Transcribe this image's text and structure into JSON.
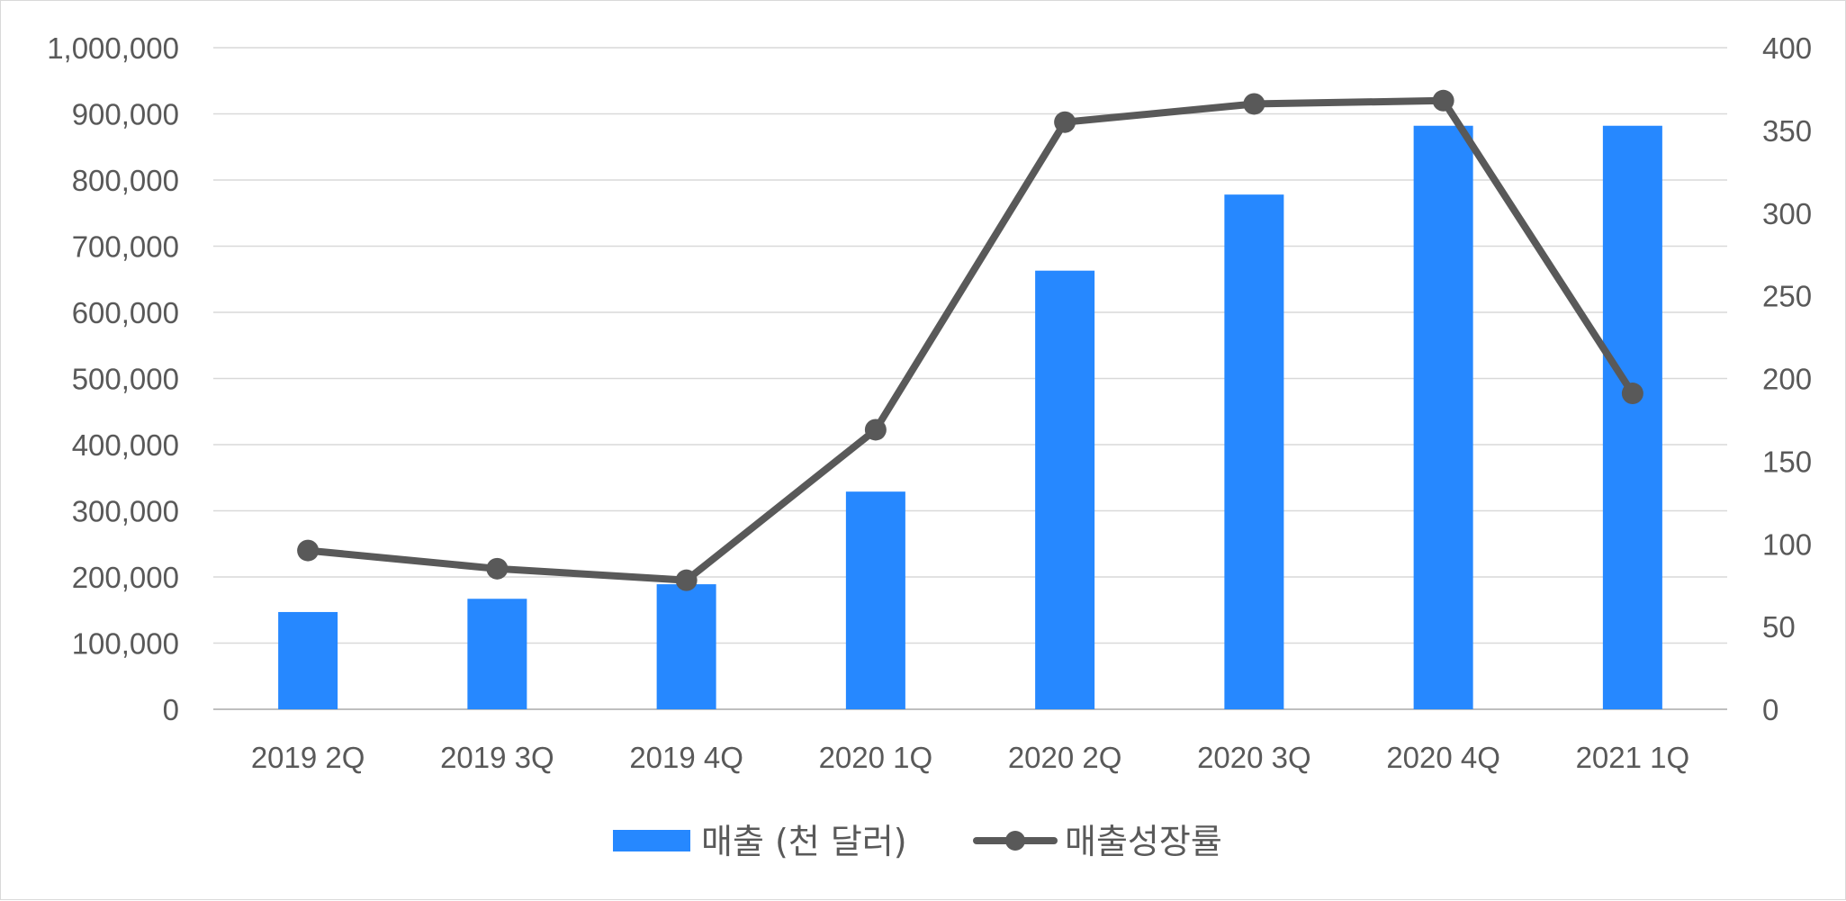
{
  "chart_data": {
    "type": "bar",
    "categories": [
      "2019 2Q",
      "2019 3Q",
      "2019 4Q",
      "2020 1Q",
      "2020 2Q",
      "2020 3Q",
      "2020 4Q",
      "2021 1Q"
    ],
    "series": [
      {
        "name": "매출 (천 달러)",
        "type": "bar",
        "axis": "left",
        "color": "#2688ff",
        "values": [
          147000,
          167000,
          189000,
          329000,
          663000,
          778000,
          882000,
          882000
        ]
      },
      {
        "name": "매출성장률",
        "type": "line",
        "axis": "right",
        "color": "#595959",
        "marker": "circle",
        "values": [
          96,
          85,
          78,
          169,
          355,
          366,
          368,
          191
        ]
      }
    ],
    "y_left": {
      "min": 0,
      "max": 1000000,
      "ticks": [
        "0",
        "100,000",
        "200,000",
        "300,000",
        "400,000",
        "500,000",
        "600,000",
        "700,000",
        "800,000",
        "900,000",
        "1,000,000"
      ]
    },
    "y_right": {
      "min": 0,
      "max": 400,
      "ticks": [
        "0",
        "50",
        "100",
        "150",
        "200",
        "250",
        "300",
        "350",
        "400"
      ]
    },
    "grid": true,
    "legend": "bottom",
    "title": "",
    "xlabel": "",
    "ylabel": ""
  }
}
